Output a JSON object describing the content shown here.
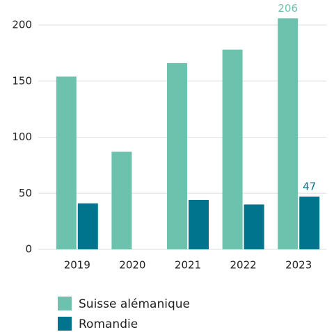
{
  "chart_data": {
    "type": "bar",
    "categories": [
      "2019",
      "2020",
      "2021",
      "2022",
      "2023"
    ],
    "series": [
      {
        "name": "Suisse alémanique",
        "color": "#6cc2ad",
        "values": [
          154,
          87,
          166,
          178,
          206
        ],
        "value_labels": [
          null,
          null,
          null,
          null,
          "206"
        ]
      },
      {
        "name": "Romandie",
        "color": "#00748c",
        "values": [
          41,
          null,
          44,
          40,
          47
        ],
        "value_labels": [
          null,
          null,
          null,
          null,
          "47"
        ]
      }
    ],
    "ylim": [
      0,
      200
    ],
    "yticks": [
      0,
      50,
      100,
      150,
      200
    ],
    "grid": true
  }
}
